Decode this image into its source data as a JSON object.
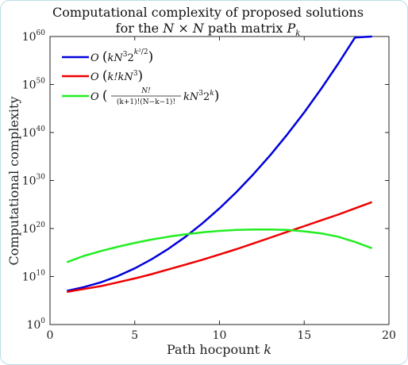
{
  "chart_data": {
    "type": "line",
    "title_line1": "Computational complexity of proposed solutions",
    "title_line2_pre": "for the ",
    "title_line2_math": "N × N",
    "title_line2_mid": " path matrix ",
    "title_line2_P": "P",
    "title_line2_sub": "k",
    "xlabel_text": "Path hocpount ",
    "xlabel_var": "k",
    "ylabel": "Computational complexity",
    "xlim": [
      0,
      20
    ],
    "ylim_log10": [
      0,
      60
    ],
    "y_scale": "log",
    "grid": false,
    "legend_position": "top-left",
    "x_ticks": [
      0,
      5,
      10,
      15,
      20
    ],
    "y_ticks_exp": [
      0,
      10,
      20,
      30,
      40,
      50,
      60
    ],
    "y_tick_base": "10",
    "series": [
      {
        "name": "O(kN^3 2^(k^2/2))",
        "legend_O": "O",
        "legend_body": "kN",
        "legend_pow3": "3",
        "legend_base2": "2",
        "legend_frac_num": "k²",
        "legend_frac_den": "2",
        "color": "#0000dd",
        "x": [
          1,
          2,
          3,
          4,
          5,
          6,
          7,
          8,
          9,
          10,
          11,
          12,
          13,
          14,
          15,
          16,
          17,
          18,
          19
        ],
        "log10_y": [
          7.0,
          7.8,
          8.8,
          10.1,
          11.7,
          13.6,
          15.8,
          18.3,
          21.1,
          24.2,
          27.6,
          31.3,
          35.3,
          39.6,
          44.2,
          49.1,
          54.3,
          59.8,
          65.6
        ]
      },
      {
        "name": "O(k!kN^3)",
        "legend_O": "O",
        "legend_body": "k!kN",
        "legend_pow3": "3",
        "color": "#ee0000",
        "x": [
          1,
          2,
          3,
          4,
          5,
          6,
          7,
          8,
          9,
          10,
          11,
          12,
          13,
          14,
          15,
          16,
          17,
          18,
          19
        ],
        "log10_y": [
          6.8,
          7.4,
          8.0,
          8.8,
          9.6,
          10.5,
          11.5,
          12.5,
          13.5,
          14.6,
          15.7,
          16.9,
          18.1,
          19.3,
          20.5,
          21.7,
          22.9,
          24.2,
          25.5
        ]
      },
      {
        "name": "O(N!/((k+1)!(N-k-1)!) kN^3 2^k)",
        "legend_O": "O",
        "legend_frac_num": "N!",
        "legend_frac_den": "(k+1)!(N−k−1)!",
        "legend_tail": "kN",
        "legend_pow3": "3",
        "legend_base2": "2",
        "legend_powk": "k",
        "color": "#22ee22",
        "x": [
          1,
          2,
          3,
          4,
          5,
          6,
          7,
          8,
          9,
          10,
          11,
          12,
          13,
          14,
          15,
          16,
          17,
          18,
          19
        ],
        "log10_y": [
          13.0,
          14.3,
          15.3,
          16.2,
          17.0,
          17.7,
          18.3,
          18.8,
          19.2,
          19.5,
          19.7,
          19.8,
          19.8,
          19.7,
          19.4,
          19.0,
          18.3,
          17.2,
          15.9
        ]
      }
    ]
  }
}
